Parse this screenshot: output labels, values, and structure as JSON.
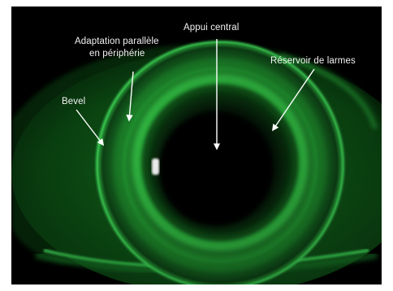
{
  "annotations": {
    "appui_central": "Appui central",
    "adaptation_line1": "Adaptation parallèle",
    "adaptation_line2": "en périphérie",
    "reservoir": "Réservoir de larmes",
    "bevel": "Bevel"
  },
  "colors": {
    "fluorescein": "#3cf05a",
    "background": "#000000",
    "annotation": "#ffffff"
  }
}
